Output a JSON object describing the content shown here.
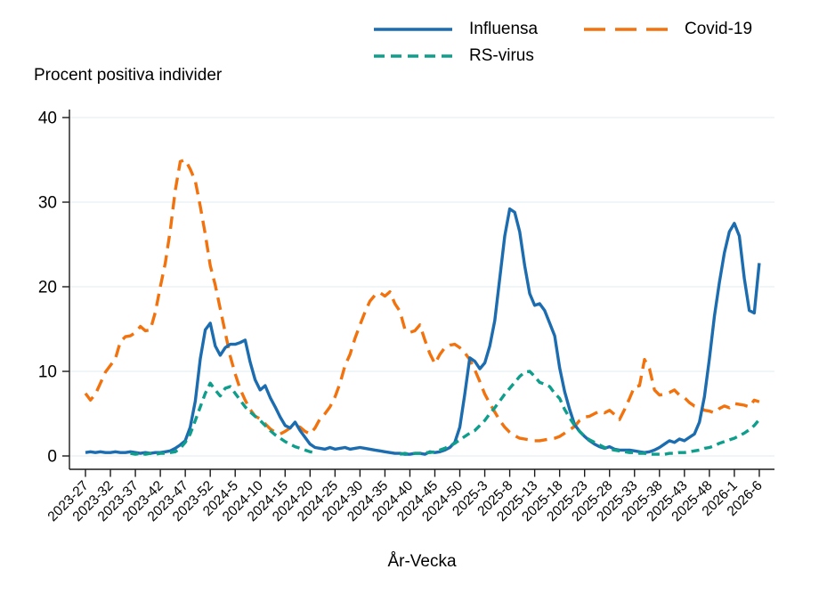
{
  "page": {
    "background": "#ffffff",
    "text_color": "#000000",
    "gridline_color": "#e6f0f3",
    "axis_color": "#1a1a1a"
  },
  "chart_data": {
    "type": "line",
    "title": "",
    "ylabel_title": "Procent positiva individer",
    "xlabel": "År-Vecka",
    "x_frequency": "weekly",
    "x_start": "2023-27",
    "x_end": "2026-6",
    "n_points": 136,
    "x_tick_every": 5,
    "x_tick_labels": [
      "2023-27",
      "2023-32",
      "2023-37",
      "2023-42",
      "2023-47",
      "2023-52",
      "2024-5",
      "2024-10",
      "2024-15",
      "2024-20",
      "2024-25",
      "2024-30",
      "2024-35",
      "2024-40",
      "2024-45",
      "2024-50",
      "2025-3",
      "2025-8",
      "2025-13",
      "2025-18",
      "2025-23",
      "2025-28",
      "2025-33",
      "2025-38",
      "2025-43",
      "2025-48",
      "2026-1",
      "2026-6"
    ],
    "y_ticks": [
      0,
      10,
      20,
      30,
      40
    ],
    "ylim": [
      0,
      40
    ],
    "grid": "horizontal",
    "legend_position": "top",
    "series": [
      {
        "name": "Influensa",
        "color": "#1c6cb0",
        "style": "solid",
        "values": [
          0.4,
          0.5,
          0.4,
          0.5,
          0.4,
          0.4,
          0.5,
          0.4,
          0.4,
          0.5,
          0.4,
          0.3,
          0.4,
          0.3,
          0.4,
          0.4,
          0.5,
          0.6,
          0.9,
          1.3,
          1.8,
          3.4,
          6.5,
          11.5,
          14.9,
          15.7,
          13.0,
          11.9,
          12.8,
          13.2,
          13.2,
          13.4,
          13.7,
          11.1,
          9.0,
          7.8,
          8.3,
          6.9,
          5.8,
          4.6,
          3.6,
          3.3,
          4.0,
          3.0,
          2.2,
          1.4,
          1.0,
          0.9,
          0.8,
          1.0,
          0.8,
          0.9,
          1.0,
          0.8,
          0.9,
          1.0,
          0.9,
          0.8,
          0.7,
          0.6,
          0.5,
          0.4,
          0.3,
          0.3,
          0.2,
          0.2,
          0.3,
          0.3,
          0.2,
          0.5,
          0.4,
          0.5,
          0.7,
          1.0,
          1.6,
          3.4,
          7.3,
          11.6,
          11.2,
          10.3,
          11.0,
          13.0,
          16.0,
          21.0,
          26.0,
          29.2,
          28.8,
          26.5,
          22.5,
          19.2,
          17.8,
          18.0,
          17.2,
          15.7,
          14.2,
          10.4,
          7.6,
          5.5,
          3.7,
          2.9,
          2.3,
          1.8,
          1.4,
          1.1,
          0.9,
          1.1,
          0.8,
          0.7,
          0.7,
          0.7,
          0.6,
          0.5,
          0.4,
          0.5,
          0.7,
          1.0,
          1.4,
          1.8,
          1.6,
          2.0,
          1.8,
          2.2,
          2.6,
          4.0,
          7.0,
          11.5,
          16.5,
          20.5,
          24.0,
          26.5,
          27.5,
          26.0,
          21.0,
          17.2,
          16.9,
          22.8
        ]
      },
      {
        "name": "Covid-19",
        "color": "#f2720d",
        "style": "long-dash",
        "values": [
          7.4,
          6.6,
          7.3,
          8.6,
          9.9,
          10.7,
          11.5,
          13.5,
          14.1,
          14.2,
          14.6,
          15.3,
          14.8,
          14.9,
          17.0,
          20.0,
          22.8,
          26.7,
          31.4,
          34.8,
          35.0,
          33.9,
          32.5,
          29.5,
          26.2,
          22.5,
          20.2,
          17.4,
          14.6,
          11.8,
          9.7,
          7.9,
          6.6,
          5.5,
          4.7,
          4.4,
          3.8,
          3.2,
          2.8,
          2.6,
          2.9,
          3.3,
          3.6,
          3.4,
          2.9,
          2.6,
          3.3,
          4.4,
          5.0,
          5.8,
          7.0,
          8.6,
          10.7,
          12.0,
          13.9,
          15.5,
          17.0,
          18.3,
          19.0,
          19.3,
          18.9,
          19.4,
          18.0,
          17.1,
          15.0,
          14.6,
          14.8,
          15.5,
          13.7,
          12.1,
          10.9,
          12.0,
          12.8,
          13.1,
          13.2,
          12.8,
          12.2,
          11.4,
          10.2,
          8.8,
          7.3,
          6.2,
          5.2,
          4.2,
          3.4,
          2.8,
          2.4,
          2.1,
          2.0,
          1.9,
          1.8,
          1.8,
          1.9,
          2.0,
          2.1,
          2.3,
          2.7,
          3.1,
          3.5,
          4.2,
          4.6,
          4.7,
          5.0,
          5.3,
          5.1,
          5.4,
          4.9,
          4.3,
          5.5,
          6.8,
          8.2,
          8.3,
          11.4,
          10.3,
          7.8,
          7.2,
          7.3,
          7.5,
          7.8,
          7.2,
          6.9,
          6.3,
          5.9,
          5.8,
          5.4,
          5.3,
          5.1,
          5.6,
          5.9,
          5.7,
          6.2,
          6.1,
          6.0,
          5.8,
          6.6,
          6.4
        ]
      },
      {
        "name": "RS-virus",
        "color": "#0f9d8c",
        "style": "dash",
        "values": [
          null,
          null,
          null,
          null,
          null,
          null,
          null,
          null,
          null,
          0.3,
          0.2,
          0.3,
          0.2,
          0.3,
          0.2,
          0.3,
          0.3,
          0.4,
          0.5,
          0.9,
          1.6,
          2.6,
          4.2,
          5.8,
          7.4,
          8.6,
          7.8,
          7.1,
          8.0,
          8.2,
          7.4,
          6.6,
          5.8,
          5.2,
          4.7,
          4.2,
          3.6,
          3.0,
          2.5,
          2.1,
          1.7,
          1.4,
          1.1,
          0.9,
          0.7,
          0.5,
          0.4,
          null,
          null,
          null,
          null,
          null,
          null,
          null,
          null,
          null,
          null,
          null,
          null,
          null,
          null,
          null,
          null,
          0.2,
          0.3,
          0.2,
          0.3,
          0.3,
          0.4,
          0.4,
          0.5,
          0.7,
          0.9,
          1.2,
          1.5,
          1.9,
          2.3,
          2.7,
          3.0,
          3.6,
          4.2,
          5.0,
          5.7,
          6.5,
          7.3,
          8.0,
          8.7,
          9.4,
          9.9,
          10.0,
          9.4,
          8.7,
          8.5,
          8.2,
          7.4,
          6.8,
          5.5,
          4.5,
          3.6,
          2.9,
          2.3,
          1.9,
          1.6,
          1.3,
          1.0,
          0.8,
          0.7,
          0.6,
          0.5,
          0.4,
          0.4,
          0.3,
          0.3,
          0.2,
          0.2,
          0.2,
          0.2,
          0.3,
          0.3,
          0.4,
          0.4,
          0.5,
          0.6,
          0.7,
          0.9,
          1.0,
          1.2,
          1.5,
          1.7,
          1.9,
          2.1,
          2.4,
          2.7,
          3.1,
          3.6,
          4.3
        ]
      }
    ]
  }
}
